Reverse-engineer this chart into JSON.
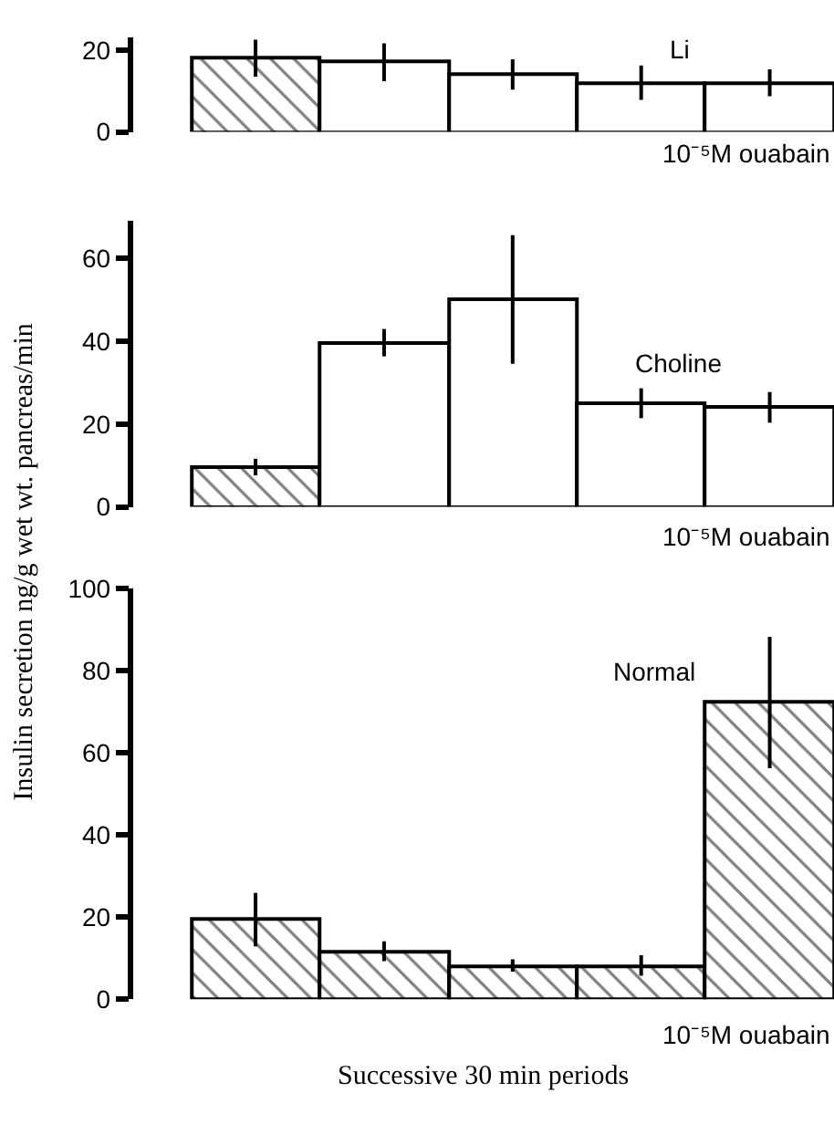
{
  "chart_data": [
    {
      "type": "bar",
      "categories": [
        null,
        null,
        null,
        null,
        null
      ],
      "tick_labels": "y",
      "ylim": [
        0,
        23
      ],
      "yticks": [
        0,
        20
      ],
      "values": [
        18,
        17,
        14,
        12,
        12
      ],
      "errors": [
        4.5,
        4.6,
        3.7,
        4.2,
        3.3
      ],
      "colors": [
        "#000000",
        "#ffffff",
        "#ffffff",
        "#ffffff",
        "#ffffff"
      ],
      "annotations": [
        "Li",
        "10⁻⁵M ouabain"
      ]
    },
    {
      "type": "bar",
      "categories": [
        null,
        null,
        null,
        null,
        null
      ],
      "tick_labels": "y",
      "ylim": [
        0,
        69
      ],
      "yticks": [
        0,
        20,
        40,
        60
      ],
      "ylabel": "Insulin secretion ng/g wet wt. pancreas/min",
      "values": [
        9.6,
        39.6,
        50,
        25,
        24
      ],
      "errors": [
        2,
        3.3,
        15.5,
        3.6,
        3.7
      ],
      "colors": [
        "#000000",
        "#ffffff",
        "#ffffff",
        "#ffffff",
        "#ffffff"
      ],
      "annotations": [
        "Choline",
        "10⁻⁵M ouabain"
      ]
    },
    {
      "type": "bar",
      "categories": [
        null,
        null,
        null,
        null,
        null
      ],
      "tick_labels": "y",
      "ylim": [
        0,
        100
      ],
      "yticks": [
        0,
        20,
        40,
        60,
        80,
        100
      ],
      "xlabel": "Successive 30 min periods",
      "values": [
        19.4,
        11.7,
        8.2,
        8.2,
        72.3
      ],
      "errors": [
        6.5,
        2.4,
        1.5,
        2.5,
        16
      ],
      "colors": [
        "#000000",
        "#000000",
        "#000000",
        "#000000",
        "#000000"
      ],
      "annotations": [
        "Normal",
        "10⁻⁵M ouabain"
      ]
    }
  ]
}
